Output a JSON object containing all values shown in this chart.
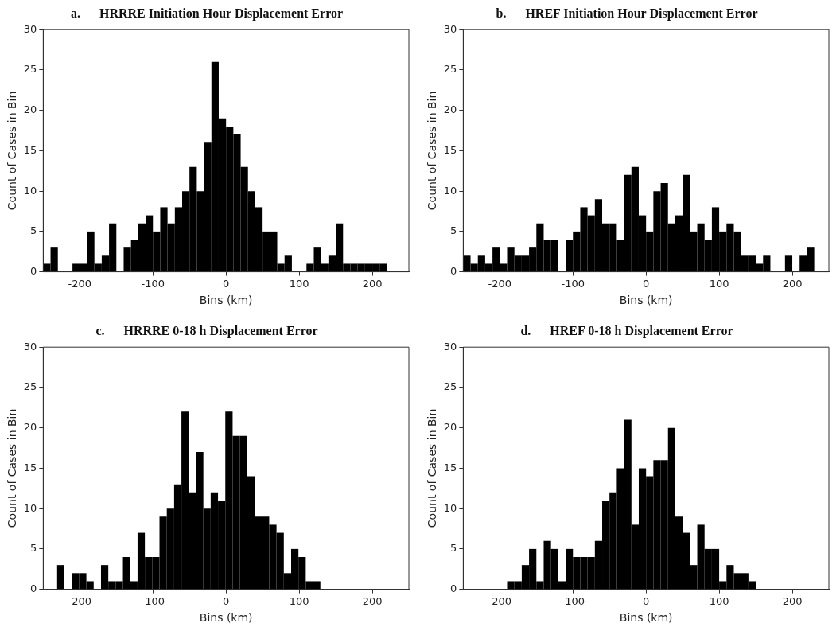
{
  "chart_data": [
    {
      "type": "histogram",
      "title": "a.      HRRRE Initiation Hour Displacement Error",
      "xlabel": "Bins (km)",
      "ylabel": "Count of Cases in Bin",
      "color": "#000000",
      "xlim": [
        -250,
        250
      ],
      "ylim": [
        0,
        30
      ],
      "xticks": [
        -200,
        -100,
        0,
        100,
        200
      ],
      "yticks": [
        0,
        5,
        10,
        15,
        20,
        25,
        30
      ],
      "bins": [
        -250,
        -240,
        -230,
        -220,
        -210,
        -200,
        -190,
        -180,
        -170,
        -160,
        -150,
        -140,
        -130,
        -120,
        -110,
        -100,
        -90,
        -80,
        -70,
        -60,
        -50,
        -40,
        -30,
        -20,
        -10,
        0,
        10,
        20,
        30,
        40,
        50,
        60,
        70,
        80,
        90,
        100,
        110,
        120,
        130,
        140,
        150,
        160,
        170,
        180,
        190,
        200,
        210,
        220
      ],
      "values": [
        1,
        3,
        0,
        0,
        1,
        1,
        5,
        1,
        2,
        6,
        0,
        3,
        4,
        6,
        7,
        5,
        8,
        6,
        8,
        10,
        13,
        10,
        16,
        26,
        19,
        18,
        17,
        13,
        10,
        8,
        5,
        5,
        1,
        2,
        0,
        0,
        1,
        3,
        1,
        2,
        6,
        1,
        1,
        1,
        1,
        1,
        1
      ]
    },
    {
      "type": "histogram",
      "title": "b.      HREF Initiation Hour Displacement Error",
      "xlabel": "Bins (km)",
      "ylabel": "Count of Cases in Bin",
      "color": "#000000",
      "xlim": [
        -250,
        250
      ],
      "ylim": [
        0,
        30
      ],
      "xticks": [
        -200,
        -100,
        0,
        100,
        200
      ],
      "yticks": [
        0,
        5,
        10,
        15,
        20,
        25,
        30
      ],
      "bins": [
        -250,
        -240,
        -230,
        -220,
        -210,
        -200,
        -190,
        -180,
        -170,
        -160,
        -150,
        -140,
        -130,
        -120,
        -110,
        -100,
        -90,
        -80,
        -70,
        -60,
        -50,
        -40,
        -30,
        -20,
        -10,
        0,
        10,
        20,
        30,
        40,
        50,
        60,
        70,
        80,
        90,
        100,
        110,
        120,
        130,
        140,
        150,
        160,
        170,
        180,
        190,
        200,
        210,
        220,
        230
      ],
      "values": [
        2,
        1,
        2,
        1,
        3,
        1,
        3,
        2,
        2,
        3,
        6,
        4,
        4,
        0,
        4,
        5,
        8,
        7,
        9,
        6,
        6,
        4,
        12,
        13,
        7,
        5,
        10,
        11,
        6,
        7,
        12,
        5,
        6,
        4,
        8,
        5,
        6,
        5,
        2,
        2,
        1,
        2,
        0,
        0,
        2,
        0,
        2,
        3
      ]
    },
    {
      "type": "histogram",
      "title": "c.      HRRRE 0-18 h Displacement Error",
      "xlabel": "Bins (km)",
      "ylabel": "Count of Cases in Bin",
      "color": "#000000",
      "xlim": [
        -250,
        250
      ],
      "ylim": [
        0,
        30
      ],
      "xticks": [
        -200,
        -100,
        0,
        100,
        200
      ],
      "yticks": [
        0,
        5,
        10,
        15,
        20,
        25,
        30
      ],
      "bins": [
        -231,
        -221,
        -211,
        -201,
        -191,
        -181,
        -171,
        -161,
        -151,
        -141,
        -131,
        -121,
        -111,
        -101,
        -91,
        -81,
        -71,
        -61,
        -51,
        -41,
        -31,
        -21,
        -11,
        -1,
        9,
        19,
        29,
        39,
        49,
        59,
        69,
        79,
        89,
        99,
        109,
        119,
        129
      ],
      "values": [
        3,
        0,
        2,
        2,
        1,
        0,
        3,
        1,
        1,
        4,
        1,
        7,
        4,
        4,
        9,
        10,
        13,
        22,
        12,
        17,
        10,
        12,
        11,
        22,
        19,
        19,
        14,
        9,
        9,
        8,
        7,
        2,
        5,
        4,
        1,
        1
      ]
    },
    {
      "type": "histogram",
      "title": "d.      HREF 0-18 h Displacement Error",
      "xlabel": "Bins (km)",
      "ylabel": "Count of Cases in Bin",
      "color": "#000000",
      "xlim": [
        -250,
        250
      ],
      "ylim": [
        0,
        30
      ],
      "xticks": [
        -200,
        -100,
        0,
        100,
        200
      ],
      "yticks": [
        0,
        5,
        10,
        15,
        20,
        25,
        30
      ],
      "bins": [
        -190,
        -180,
        -170,
        -160,
        -150,
        -140,
        -130,
        -120,
        -110,
        -100,
        -90,
        -80,
        -70,
        -60,
        -50,
        -40,
        -30,
        -20,
        -10,
        0,
        10,
        20,
        30,
        40,
        50,
        60,
        70,
        80,
        90,
        100,
        110,
        120,
        130,
        140,
        150
      ],
      "values": [
        1,
        1,
        3,
        5,
        1,
        6,
        5,
        1,
        5,
        4,
        4,
        4,
        6,
        11,
        12,
        15,
        21,
        8,
        15,
        14,
        16,
        16,
        20,
        9,
        7,
        3,
        8,
        5,
        5,
        1,
        3,
        2,
        2,
        1
      ]
    }
  ]
}
